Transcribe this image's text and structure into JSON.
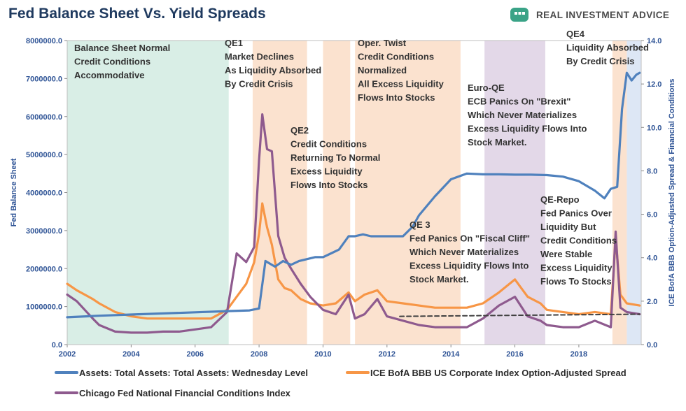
{
  "header": {
    "title": "Fed Balance Sheet Vs. Yield Spreads",
    "brand_name": "REAL INVESTMENT ADVICE"
  },
  "colors": {
    "balance_sheet": "#4f81bd",
    "bbb_spread": "#f79646",
    "nfci": "#8e5a8e",
    "trend_dashed": "#404040",
    "qe_shade": "#fbe2cf",
    "normal_shade": "#d9eee6",
    "euroqe_shade": "#e3d8e8",
    "qe4_shade": "#dde7f5",
    "brand_icon": "#3aa387",
    "axis_text": "#2f5496"
  },
  "annotations": [
    {
      "id": "normal",
      "lines": [
        "Balance Sheet Normal",
        "Credit Conditions",
        "Accommodative"
      ]
    },
    {
      "id": "qe1",
      "lines": [
        "QE1",
        "Market Declines",
        "As Liquidity Absorbed",
        "By Credit Crisis"
      ]
    },
    {
      "id": "qe2",
      "lines": [
        "QE2",
        "Credit Conditions",
        "Returning To Normal",
        "Excess Liquidity",
        "Flows Into Stocks"
      ]
    },
    {
      "id": "twist",
      "lines": [
        "Oper. Twist",
        "Credit Conditions",
        "Normalized",
        "All Excess Liquidity",
        "Flows Into Stocks"
      ]
    },
    {
      "id": "qe3",
      "lines": [
        "QE 3",
        "Fed Panics On \"Fiscal Cliff\"",
        "Which Never Materializes",
        "Excess Liquidity Flows Into",
        "Stock Market."
      ]
    },
    {
      "id": "euroqe",
      "lines": [
        "Euro-QE",
        "ECB Panics On \"Brexit\"",
        "Which Never Materializes",
        "Excess Liquidity Flows Into",
        "Stock Market."
      ]
    },
    {
      "id": "qerepo",
      "lines": [
        "QE-Repo",
        "Fed Panics Over",
        "Liquidity But",
        "Credit Conditions",
        "Were Stable",
        "Excess Liquidity",
        "Flows To Stocks"
      ]
    },
    {
      "id": "qe4",
      "lines": [
        "QE4",
        "Liquidity Absorbed",
        "By Credit Crisis"
      ]
    }
  ],
  "legend": {
    "items": [
      {
        "label": "Assets: Total Assets: Total Assets: Wednesday Level",
        "color": "#4f81bd"
      },
      {
        "label": "ICE BofA BBB US Corporate Index Option-Adjusted Spread",
        "color": "#f79646"
      },
      {
        "label": "Chicago Fed National Financial Conditions Index",
        "color": "#8e5a8e"
      }
    ]
  },
  "chart_data": {
    "type": "line",
    "title": "Fed Balance Sheet Vs. Yield Spreads",
    "xlabel": "",
    "ylabel": "Fed Balance Sheet",
    "y2label": "ICE BofA BBB Option-Adjusted Spread & Financial Conditions",
    "xlim": [
      2002,
      2019.95
    ],
    "ylim": [
      0,
      8000000
    ],
    "y2lim": [
      0,
      14
    ],
    "x_ticks": [
      "2002",
      "2004",
      "2006",
      "2008",
      "2010",
      "2012",
      "2014",
      "2016",
      "2018"
    ],
    "y_ticks": [
      "0.0",
      "1000000.0",
      "2000000.0",
      "3000000.0",
      "4000000.0",
      "5000000.0",
      "6000000.0",
      "7000000.0",
      "8000000.0"
    ],
    "y2_ticks": [
      "0.0",
      "2.0",
      "4.0",
      "6.0",
      "8.0",
      "10.0",
      "12.0",
      "14.0"
    ],
    "shaded_periods": [
      {
        "label": "Balance Sheet Normal",
        "start": 2002.0,
        "end": 2007.05,
        "kind": "normal"
      },
      {
        "label": "QE1",
        "start": 2007.8,
        "end": 2009.5,
        "kind": "qe"
      },
      {
        "label": "QE2",
        "start": 2010.0,
        "end": 2010.85,
        "kind": "qe"
      },
      {
        "label": "Oper. Twist",
        "start": 2011.0,
        "end": 2014.3,
        "kind": "qe"
      },
      {
        "label": "Euro-QE",
        "start": 2015.05,
        "end": 2016.95,
        "kind": "euroqe"
      },
      {
        "label": "QE4",
        "start": 2019.05,
        "end": 2019.5,
        "kind": "qe"
      },
      {
        "label": "QE4 blue",
        "start": 2019.5,
        "end": 2019.95,
        "kind": "qe4"
      }
    ],
    "series": [
      {
        "name": "Assets: Total Assets: Total Assets: Wednesday Level",
        "axis": "left",
        "x": [
          2002.0,
          2003.0,
          2004.0,
          2005.0,
          2006.0,
          2007.0,
          2007.7,
          2008.0,
          2008.2,
          2008.5,
          2008.75,
          2009.0,
          2009.25,
          2009.5,
          2009.75,
          2010.0,
          2010.25,
          2010.5,
          2010.8,
          2011.0,
          2011.25,
          2011.5,
          2012.0,
          2012.5,
          2012.8,
          2013.0,
          2013.5,
          2014.0,
          2014.5,
          2015.0,
          2015.5,
          2016.0,
          2016.5,
          2017.0,
          2017.5,
          2018.0,
          2018.5,
          2018.8,
          2019.0,
          2019.2,
          2019.35,
          2019.5,
          2019.65,
          2019.8,
          2019.9
        ],
        "y": [
          720000,
          760000,
          790000,
          820000,
          850000,
          880000,
          900000,
          950000,
          2200000,
          2050000,
          2200000,
          2100000,
          2200000,
          2250000,
          2300000,
          2300000,
          2400000,
          2500000,
          2850000,
          2850000,
          2900000,
          2850000,
          2850000,
          2850000,
          3100000,
          3400000,
          3900000,
          4350000,
          4500000,
          4480000,
          4480000,
          4470000,
          4470000,
          4460000,
          4420000,
          4300000,
          4050000,
          3850000,
          4100000,
          4150000,
          6200000,
          7150000,
          6950000,
          7100000,
          7150000
        ]
      },
      {
        "name": "ICE BofA BBB US Corporate Index Option-Adjusted Spread",
        "axis": "right",
        "x": [
          2002.0,
          2002.3,
          2002.8,
          2003.0,
          2003.5,
          2004.0,
          2004.5,
          2005.0,
          2005.5,
          2006.0,
          2006.5,
          2007.0,
          2007.3,
          2007.6,
          2007.85,
          2008.0,
          2008.1,
          2008.25,
          2008.4,
          2008.6,
          2008.8,
          2009.0,
          2009.3,
          2009.6,
          2010.0,
          2010.4,
          2010.8,
          2011.0,
          2011.3,
          2011.7,
          2012.0,
          2012.5,
          2013.0,
          2013.5,
          2014.0,
          2014.5,
          2015.0,
          2015.5,
          2016.0,
          2016.4,
          2016.8,
          2017.0,
          2017.5,
          2018.0,
          2018.5,
          2019.0,
          2019.15,
          2019.3,
          2019.5,
          2019.9
        ],
        "y": [
          2.8,
          2.5,
          2.1,
          1.9,
          1.5,
          1.3,
          1.2,
          1.2,
          1.2,
          1.2,
          1.2,
          1.6,
          2.2,
          2.8,
          3.8,
          5.1,
          6.5,
          5.4,
          4.6,
          3.0,
          2.6,
          2.5,
          2.1,
          1.9,
          1.8,
          1.9,
          2.4,
          2.0,
          2.3,
          2.5,
          2.0,
          1.9,
          1.8,
          1.7,
          1.7,
          1.7,
          1.9,
          2.4,
          3.0,
          2.2,
          1.9,
          1.6,
          1.5,
          1.4,
          1.5,
          1.4,
          4.9,
          2.3,
          1.9,
          1.8
        ]
      },
      {
        "name": "Chicago Fed National Financial Conditions Index",
        "axis": "right",
        "x": [
          2002.0,
          2002.3,
          2002.8,
          2003.0,
          2003.5,
          2004.0,
          2004.5,
          2005.0,
          2005.5,
          2006.0,
          2006.5,
          2007.0,
          2007.3,
          2007.6,
          2007.85,
          2008.0,
          2008.1,
          2008.25,
          2008.4,
          2008.6,
          2008.8,
          2009.0,
          2009.3,
          2009.6,
          2010.0,
          2010.4,
          2010.8,
          2011.0,
          2011.3,
          2011.7,
          2012.0,
          2012.5,
          2013.0,
          2013.5,
          2014.0,
          2014.5,
          2015.0,
          2015.5,
          2016.0,
          2016.4,
          2016.8,
          2017.0,
          2017.5,
          2018.0,
          2018.5,
          2019.0,
          2019.15,
          2019.3,
          2019.5,
          2019.9
        ],
        "y": [
          2.3,
          2.0,
          1.2,
          0.9,
          0.6,
          0.55,
          0.55,
          0.6,
          0.6,
          0.7,
          0.8,
          1.5,
          4.2,
          3.8,
          4.5,
          8.5,
          10.6,
          9.0,
          8.9,
          5.0,
          4.0,
          3.5,
          2.8,
          2.2,
          1.6,
          1.4,
          2.3,
          1.2,
          1.4,
          2.1,
          1.3,
          1.1,
          0.9,
          0.8,
          0.8,
          0.8,
          1.2,
          1.8,
          2.2,
          1.3,
          1.1,
          0.9,
          0.8,
          0.8,
          1.1,
          0.8,
          5.2,
          1.7,
          1.5,
          1.4
        ]
      },
      {
        "name": "",
        "axis": "right",
        "style": "dashed",
        "x": [
          2012.4,
          2019.9
        ],
        "y": [
          1.3,
          1.4
        ]
      }
    ]
  }
}
